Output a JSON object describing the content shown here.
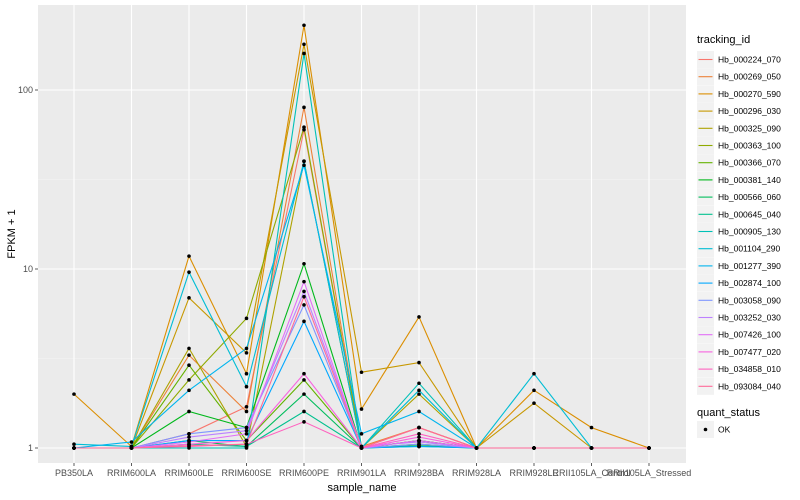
{
  "chart_data": {
    "type": "line",
    "xlabel": "sample_name",
    "ylabel": "FPKM + 1",
    "y_scale": "log10",
    "ylim": [
      0.9,
      260
    ],
    "y_ticks": [
      1,
      10,
      100
    ],
    "y_tick_labels": [
      "1",
      "10",
      "100"
    ],
    "grid": true,
    "legend_placement": "right",
    "categories": [
      "PB350LA",
      "RRIM600LA",
      "RRIM600LE",
      "RRIM600SE",
      "RRIM600PE",
      "RRIM901LA",
      "RRIM928BA",
      "RRIM928LA",
      "RRIM928LE",
      "RRII105LA_Control",
      "RRII105LA_Stressed"
    ],
    "legend_title": "tracking_id",
    "series": [
      {
        "name": "Hb_000224_070",
        "color": "#F8766D",
        "values": [
          1,
          1,
          1.2,
          1.7,
          60,
          1,
          1.3,
          1,
          1,
          1,
          1
        ]
      },
      {
        "name": "Hb_000269_050",
        "color": "#EC8239",
        "values": [
          1,
          1,
          3.3,
          1.6,
          80,
          1.02,
          1.3,
          1,
          1,
          1,
          1
        ]
      },
      {
        "name": "Hb_000270_590",
        "color": "#DB8E00",
        "values": [
          2.0,
          1.02,
          11.8,
          2.6,
          230,
          1.65,
          5.4,
          1.0,
          2.1,
          1.3,
          1.0
        ]
      },
      {
        "name": "Hb_000296_030",
        "color": "#C79800",
        "values": [
          1,
          1,
          6.9,
          3.4,
          180,
          2.65,
          3.0,
          1,
          1.78,
          1,
          1
        ]
      },
      {
        "name": "Hb_000325_090",
        "color": "#AEA200",
        "values": [
          1,
          1,
          3.6,
          1.02,
          40,
          1,
          2.0,
          1,
          1,
          1,
          1
        ]
      },
      {
        "name": "Hb_000363_100",
        "color": "#8FAA00",
        "values": [
          1,
          1,
          2.4,
          5.3,
          62,
          1,
          1.1,
          1,
          1,
          1,
          1
        ]
      },
      {
        "name": "Hb_000366_070",
        "color": "#64B200",
        "values": [
          1,
          1,
          2.9,
          1.1,
          2.4,
          1,
          1.05,
          1,
          1,
          1,
          1
        ]
      },
      {
        "name": "Hb_000381_140",
        "color": "#00B81B",
        "values": [
          1,
          1,
          1.6,
          1.3,
          10.7,
          1,
          1.1,
          1,
          1,
          1,
          1
        ]
      },
      {
        "name": "Hb_000566_060",
        "color": "#00BD5C",
        "values": [
          1,
          1,
          1.1,
          1.02,
          2.0,
          1,
          1.03,
          1,
          1,
          1,
          1
        ]
      },
      {
        "name": "Hb_000645_040",
        "color": "#00C08E",
        "values": [
          1,
          1,
          1.05,
          1.02,
          1.6,
          1,
          1.02,
          1,
          1,
          1,
          1
        ]
      },
      {
        "name": "Hb_000905_130",
        "color": "#00C1B7",
        "values": [
          1,
          1,
          1,
          1,
          160,
          1,
          2.3,
          1,
          1,
          1,
          1
        ]
      },
      {
        "name": "Hb_001104_290",
        "color": "#00BDD4",
        "values": [
          1.05,
          1.02,
          9.6,
          2.2,
          40,
          1,
          2.1,
          1,
          2.6,
          1,
          1
        ]
      },
      {
        "name": "Hb_001277_390",
        "color": "#00B5EE",
        "values": [
          1,
          1.08,
          2.1,
          3.6,
          38,
          1.2,
          1.6,
          1,
          1,
          1,
          1
        ]
      },
      {
        "name": "Hb_002874_100",
        "color": "#00A7FF",
        "values": [
          1,
          1,
          1.1,
          1.1,
          5.1,
          1,
          1.02,
          1,
          1,
          1,
          1
        ]
      },
      {
        "name": "Hb_003058_090",
        "color": "#7F96FF",
        "values": [
          1,
          1,
          1.2,
          1.3,
          6.3,
          1,
          1.05,
          1,
          1,
          1,
          1
        ]
      },
      {
        "name": "Hb_003252_030",
        "color": "#BC81FF",
        "values": [
          1,
          1,
          1.15,
          1.25,
          7.5,
          1.02,
          1.08,
          1,
          1,
          1,
          1
        ]
      },
      {
        "name": "Hb_007426_100",
        "color": "#E26EF7",
        "values": [
          1,
          1,
          1.08,
          1.2,
          8.5,
          1,
          1.1,
          1,
          1,
          1,
          1
        ]
      },
      {
        "name": "Hb_007477_020",
        "color": "#F863DF",
        "values": [
          1,
          1,
          1.05,
          1.1,
          2.6,
          1,
          1.15,
          1,
          1,
          1,
          1
        ]
      },
      {
        "name": "Hb_034858_010",
        "color": "#FF62BF",
        "values": [
          1,
          1,
          1.02,
          1.05,
          1.4,
          1,
          1.2,
          1,
          1,
          1,
          1
        ]
      },
      {
        "name": "Hb_093084_040",
        "color": "#FF6A98",
        "values": [
          1,
          1,
          1.03,
          1.05,
          7.0,
          1,
          1.3,
          1,
          1,
          1,
          1
        ]
      }
    ],
    "shape_legend": {
      "title": "quant_status",
      "items": [
        {
          "label": "OK"
        }
      ]
    }
  }
}
